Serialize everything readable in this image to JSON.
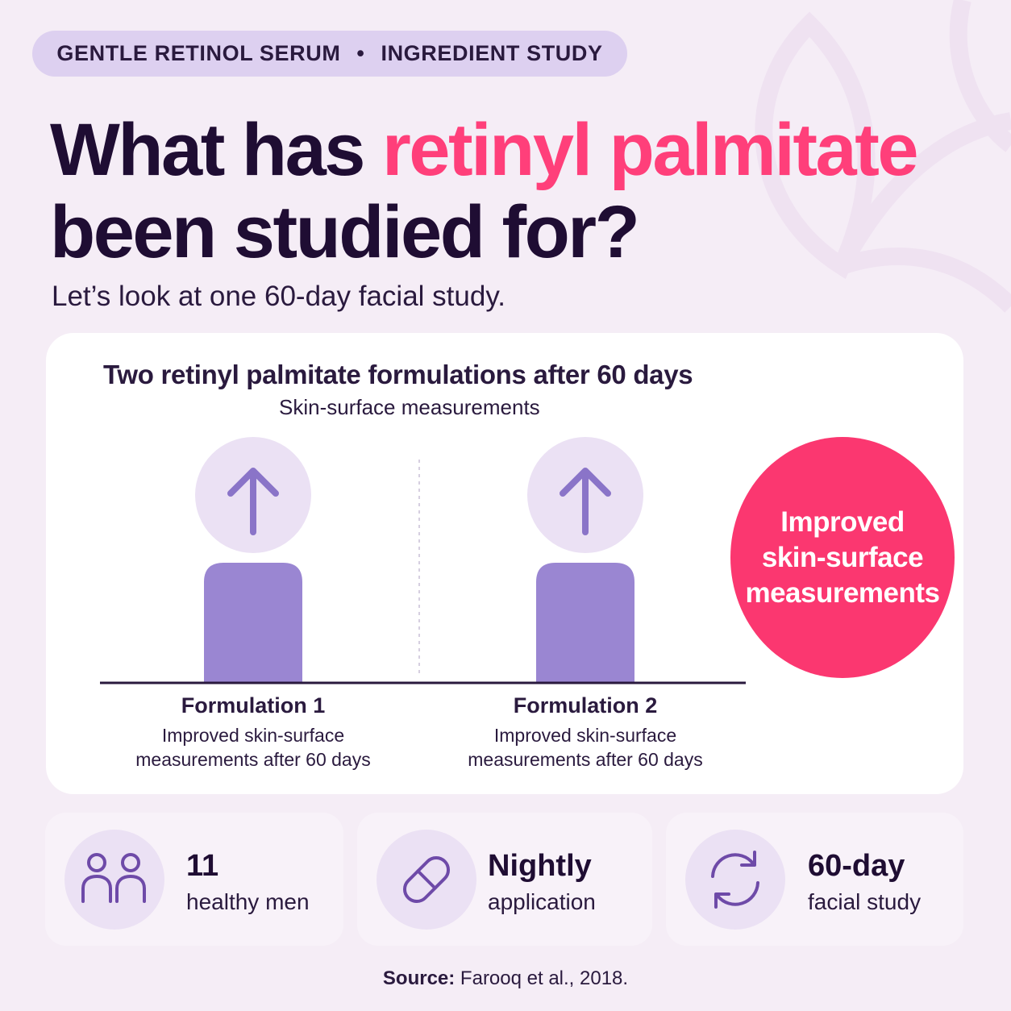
{
  "pill": {
    "left": "GENTLE RETINOL SERUM",
    "sep": "•",
    "right": "INGREDIENT STUDY"
  },
  "headline": {
    "part1": "What has ",
    "accent": "retinyl palmitate",
    "part2": " been studied for?"
  },
  "subhead": "Let’s look at one 60-day facial study.",
  "chart_data": {
    "type": "bar",
    "title": "Two retinyl palmitate formulations after 60 days",
    "subtitle": "Skin-surface measurements",
    "categories": [
      "Formulation 1",
      "Formulation 2"
    ],
    "descriptions": [
      "Improved skin-surface measurements after 60 days",
      "Improved skin-surface measurements after 60 days"
    ],
    "direction": [
      "up",
      "up"
    ],
    "bar_color": "#9a86d2",
    "circle_color": "#ebe1f4",
    "arrow_color": "#8a74c8"
  },
  "badge": {
    "line1": "Improved",
    "line2": "skin-surface",
    "line3": "measurements",
    "color": "#fb3770"
  },
  "stats": [
    {
      "icon": "people-icon",
      "big": "11",
      "small": "healthy men"
    },
    {
      "icon": "capsule-icon",
      "big": "Nightly",
      "small": "application"
    },
    {
      "icon": "refresh-icon",
      "big": "60-day",
      "small": "facial study"
    }
  ],
  "source": {
    "label": "Source:",
    "text": " Farooq et al., 2018."
  }
}
